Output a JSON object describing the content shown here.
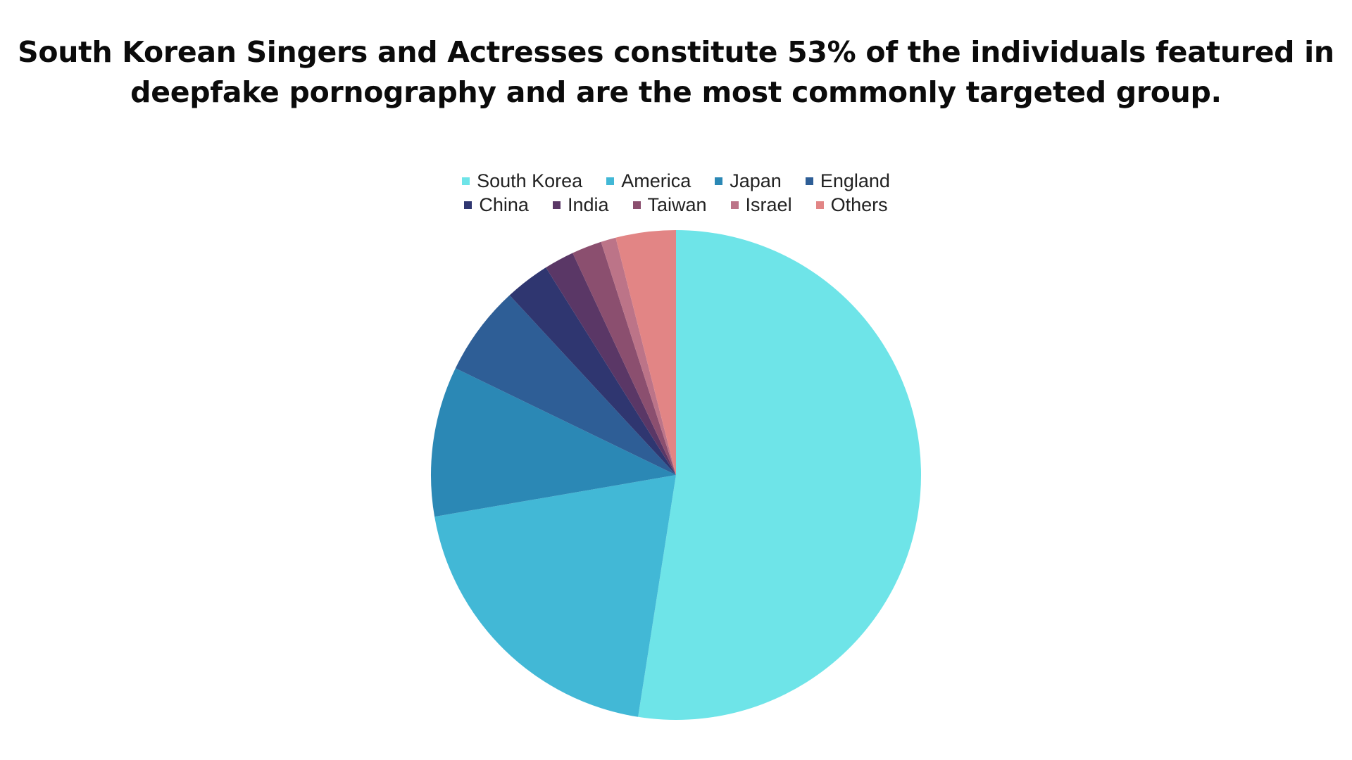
{
  "title": {
    "line1": "South Korean Singers and Actresses constitute 53% of the individuals featured in",
    "line2": "deepfake pornography and are the most commonly targeted group."
  },
  "legend": {
    "row1": [
      {
        "label": "South Korea",
        "color": "#6EE4E8"
      },
      {
        "label": "America",
        "color": "#42B8D6"
      },
      {
        "label": "Japan",
        "color": "#2B88B5"
      },
      {
        "label": "England",
        "color": "#2E5E96"
      },
      {
        "label": "China",
        "color": "#2F3670"
      }
    ],
    "row2": [
      {
        "label": "India",
        "color": "#5A3766"
      },
      {
        "label": "Taiwan",
        "color": "#8B4F6F"
      },
      {
        "label": "Israel",
        "color": "#BC7488"
      },
      {
        "label": "Others",
        "color": "#E28585"
      }
    ]
  },
  "chart_data": {
    "type": "pie",
    "title": "South Korean Singers and Actresses constitute 53% of the individuals featured in deepfake pornography and are the most commonly targeted group.",
    "categories": [
      "South Korea",
      "America",
      "Japan",
      "England",
      "China",
      "India",
      "Taiwan",
      "Israel",
      "Others"
    ],
    "values": [
      53,
      20,
      10,
      6,
      3,
      2,
      2,
      1,
      4
    ],
    "unit": "%",
    "colors": [
      "#6EE4E8",
      "#42B8D6",
      "#2B88B5",
      "#2E5E96",
      "#2F3670",
      "#5A3766",
      "#8B4F6F",
      "#BC7488",
      "#E28585"
    ],
    "start_angle": "12 o'clock",
    "direction": "clockwise",
    "legend_position": "top",
    "data_labels": false
  }
}
